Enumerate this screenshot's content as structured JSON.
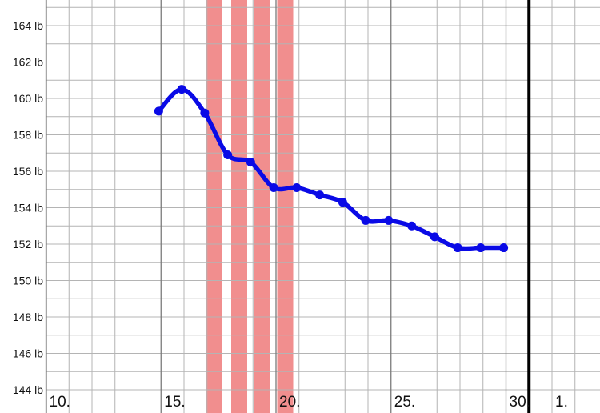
{
  "chart_data": {
    "type": "line",
    "title": "",
    "xlabel": "",
    "ylabel": "",
    "x_ticks": [
      "10.",
      "15.",
      "20.",
      "25.",
      "30.",
      "1."
    ],
    "y_ticks": [
      "144 lb",
      "146 lb",
      "148 lb",
      "150 lb",
      "152 lb",
      "154 lb",
      "156 lb",
      "158 lb",
      "160 lb",
      "162 lb",
      "164 lb"
    ],
    "ylim": [
      143.8,
      165.4
    ],
    "xlim": [
      8,
      32
    ],
    "month_boundary_day": 31,
    "grid": true,
    "highlight_bands_days": [
      17.3,
      18.4,
      19.4,
      20.4
    ],
    "colors": {
      "line": "#0a0ae6",
      "band": "#ef7a7a",
      "grid": "#b4b4b4",
      "major_grid": "#7a7a7a",
      "boundary": "#000000"
    },
    "series": [
      {
        "name": "",
        "x": [
          14.9,
          15.9,
          16.9,
          17.9,
          18.9,
          19.9,
          20.9,
          21.9,
          22.9,
          23.9,
          24.9,
          25.9,
          26.9,
          27.9,
          28.9,
          29.9
        ],
        "y": [
          159.3,
          160.5,
          159.2,
          156.9,
          156.5,
          155.1,
          155.1,
          154.7,
          154.3,
          153.3,
          153.3,
          153.0,
          152.4,
          151.8,
          151.8,
          151.8
        ]
      }
    ]
  }
}
